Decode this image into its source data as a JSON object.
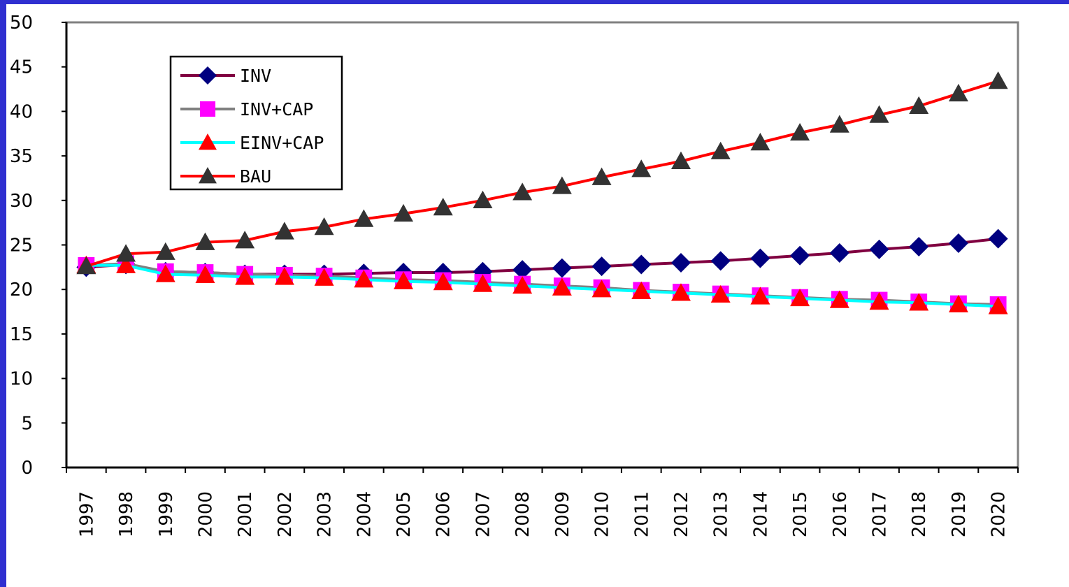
{
  "chart_data": {
    "type": "line",
    "categories": [
      "1997",
      "1998",
      "1999",
      "2000",
      "2001",
      "2002",
      "2003",
      "2004",
      "2005",
      "2006",
      "2007",
      "2008",
      "2009",
      "2010",
      "2011",
      "2012",
      "2013",
      "2014",
      "2015",
      "2016",
      "2017",
      "2018",
      "2019",
      "2020"
    ],
    "ylim": [
      0,
      50
    ],
    "yticks": [
      "0",
      "5",
      "10",
      "15",
      "20",
      "25",
      "30",
      "35",
      "40",
      "45",
      "50"
    ],
    "grid": false,
    "legend_position": "top-left",
    "series": [
      {
        "name": "INV",
        "color": "#800040",
        "marker": "diamond",
        "marker_color": "#000080",
        "values": [
          22.5,
          22.8,
          22.0,
          21.9,
          21.7,
          21.7,
          21.7,
          21.8,
          21.9,
          21.9,
          22.0,
          22.2,
          22.4,
          22.6,
          22.8,
          23.0,
          23.2,
          23.5,
          23.8,
          24.1,
          24.5,
          24.8,
          25.2,
          25.7
        ]
      },
      {
        "name": "INV+CAP",
        "color": "#808080",
        "marker": "square",
        "marker_color": "#ff00ff",
        "values": [
          22.7,
          22.9,
          22.0,
          21.9,
          21.7,
          21.6,
          21.5,
          21.3,
          21.1,
          21.0,
          20.8,
          20.6,
          20.4,
          20.2,
          19.9,
          19.7,
          19.5,
          19.3,
          19.1,
          18.9,
          18.8,
          18.6,
          18.4,
          18.3
        ]
      },
      {
        "name": "EINV+CAP",
        "color": "#00ffff",
        "marker": "triangle",
        "marker_color": "#ff0000",
        "values": [
          22.7,
          22.7,
          21.7,
          21.6,
          21.4,
          21.4,
          21.3,
          21.1,
          20.9,
          20.8,
          20.6,
          20.4,
          20.2,
          20.0,
          19.8,
          19.6,
          19.4,
          19.2,
          19.0,
          18.8,
          18.6,
          18.5,
          18.3,
          18.1
        ]
      },
      {
        "name": "BAU",
        "color": "#ff0000",
        "marker": "triangle",
        "marker_color": "#333333",
        "values": [
          22.6,
          24.0,
          24.2,
          25.3,
          25.5,
          26.5,
          27.0,
          27.9,
          28.5,
          29.2,
          30.0,
          30.9,
          31.6,
          32.6,
          33.5,
          34.4,
          35.5,
          36.5,
          37.6,
          38.5,
          39.6,
          40.6,
          42.0,
          43.4
        ]
      }
    ]
  }
}
